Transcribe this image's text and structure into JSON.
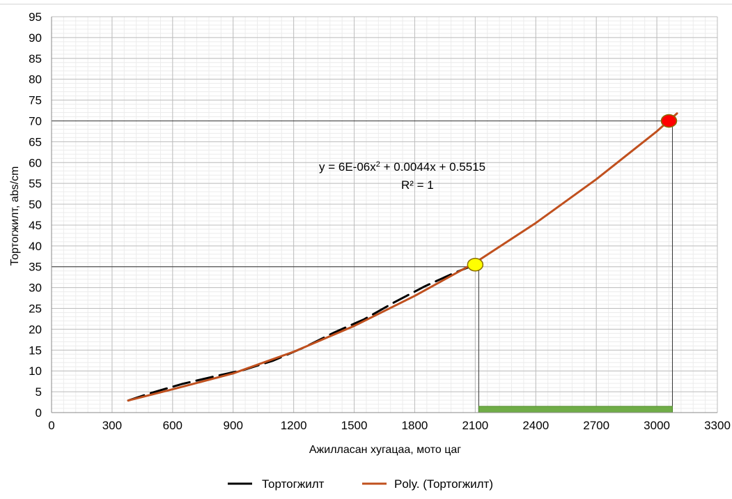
{
  "chart_data": {
    "type": "line",
    "xlabel": "Ажилласан хугацаа, мото цаг",
    "ylabel": "Тортогжилт, abs/cm",
    "xlim": [
      0,
      3300
    ],
    "ylim": [
      0,
      95
    ],
    "x_ticks": [
      0,
      300,
      600,
      900,
      1200,
      1500,
      1800,
      2100,
      2400,
      2700,
      3000,
      3300
    ],
    "y_ticks": [
      0,
      5,
      10,
      15,
      20,
      25,
      30,
      35,
      40,
      45,
      50,
      55,
      60,
      65,
      70,
      75,
      80,
      85,
      90,
      95
    ],
    "grid": true,
    "legend_position": "bottom",
    "series": [
      {
        "name": "Тортогжилт",
        "style": "dashed",
        "color": "#000000",
        "x": [
          380,
          500,
          650,
          800,
          950,
          1100,
          1250,
          1400,
          1550,
          1700,
          1850,
          2000,
          2100
        ],
        "y": [
          2.9,
          4.8,
          6.9,
          8.6,
          10.2,
          12.5,
          15.6,
          19.2,
          22.4,
          26.5,
          30.3,
          33.6,
          35.5
        ]
      },
      {
        "name": "Poly. (Тортогжилт)",
        "style": "solid",
        "color": "#c0501e",
        "x": [
          380,
          600,
          900,
          1200,
          1500,
          1800,
          2100,
          2400,
          2700,
          3000,
          3100
        ],
        "y": [
          2.9,
          5.6,
          9.4,
          14.6,
          20.8,
          28.0,
          36.0,
          45.5,
          56.0,
          67.5,
          71.8
        ]
      }
    ],
    "trendline_equation": "y = 6E-06x",
    "trendline_equation_exp": "2",
    "trendline_equation_rest": " + 0.0044x + 0.5515",
    "r_squared": "R² = 1",
    "markers": [
      {
        "x": 2100,
        "y": 35.5,
        "color": "#ffff00"
      },
      {
        "x": 3060,
        "y": 70,
        "color": "#ff0000"
      }
    ],
    "reference_lines": [
      {
        "y": 35,
        "x_end": 2100
      },
      {
        "y": 70,
        "x_end": 3060
      }
    ],
    "highlight_bar": {
      "x_start": 2100,
      "x_end": 3060,
      "color": "#70ad47"
    }
  }
}
